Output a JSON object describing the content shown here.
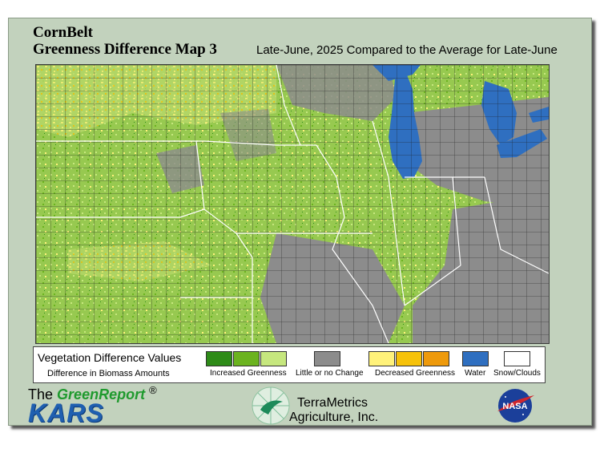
{
  "header": {
    "region": "CornBelt",
    "map_title": "Greenness Difference Map 3",
    "period": "Late-June, 2025 Compared to the Average for Late-June"
  },
  "legend": {
    "title": "Vegetation Difference Values",
    "subtitle": "Difference in Biomass Amounts",
    "increased_label": "Increased Greenness",
    "little_label": "Little or no Change",
    "decreased_label": "Decreased Greenness",
    "water_label": "Water",
    "snow_label": "Snow/Clouds",
    "colors": {
      "increased": [
        "#2e8b18",
        "#6bb31f",
        "#c6e77e"
      ],
      "little": "#8c8c8c",
      "decreased": [
        "#fff27a",
        "#f6c20a",
        "#ee9a0c"
      ],
      "water": "#2f6fc0",
      "snow": "#ffffff"
    }
  },
  "logos": {
    "greenreport_the": "The",
    "greenreport_name": "GreenReport",
    "greenreport_reg": "®",
    "kars": "KARS",
    "terrametrics_name": "TerraMetrics",
    "terrametrics_sub": "Agriculture, Inc.",
    "nasa": "NASA"
  },
  "map_colors": {
    "base_green": "#97c950",
    "gray": "#8c8c8c",
    "water": "#2f6fc0",
    "county_lines": "#1a1a1a",
    "state_lines": "#ffffff"
  }
}
